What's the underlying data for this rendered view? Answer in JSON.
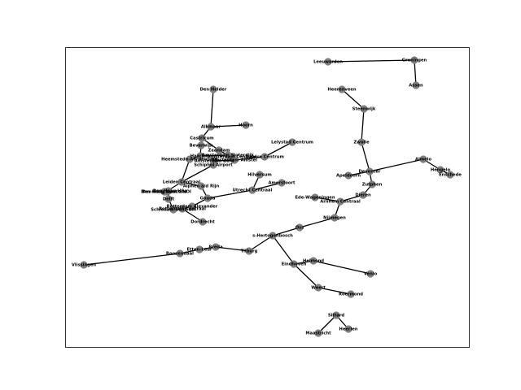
{
  "colors": {
    "node": "#808080",
    "edge": "#000000",
    "frame": "#000000",
    "background": "#ffffff"
  },
  "nodes": [
    {
      "id": "leeuwarden",
      "label": "Leeuwarden"
    },
    {
      "id": "groningen",
      "label": "Groningen"
    },
    {
      "id": "assen",
      "label": "Assen"
    },
    {
      "id": "heerenveen",
      "label": "Heerenveen"
    },
    {
      "id": "steenwijk",
      "label": "Steenwijk"
    },
    {
      "id": "zwolle",
      "label": "Zwolle"
    },
    {
      "id": "deventer",
      "label": "Deventer"
    },
    {
      "id": "almelo",
      "label": "Almelo"
    },
    {
      "id": "hengelo",
      "label": "Hengelo"
    },
    {
      "id": "enschede",
      "label": "Enschede"
    },
    {
      "id": "apeldoorn",
      "label": "Apeldoorn"
    },
    {
      "id": "zutphen",
      "label": "Zutphen"
    },
    {
      "id": "dieren",
      "label": "Dieren"
    },
    {
      "id": "arnhem",
      "label": "Arnhem Centraal"
    },
    {
      "id": "ede",
      "label": "Ede-Wageningen"
    },
    {
      "id": "nijmegen",
      "label": "Nijmegen"
    },
    {
      "id": "oss",
      "label": "Oss"
    },
    {
      "id": "denbosch",
      "label": "s-Hertogenbosch"
    },
    {
      "id": "tilburg",
      "label": "Tilburg"
    },
    {
      "id": "breda",
      "label": "Breda"
    },
    {
      "id": "ettenleur",
      "label": "Etten-Leur"
    },
    {
      "id": "roosendaal",
      "label": "Roosendaal"
    },
    {
      "id": "vlissingen",
      "label": "Vlissingen"
    },
    {
      "id": "eindhoven",
      "label": "Eindhoven"
    },
    {
      "id": "helmond",
      "label": "Helmond"
    },
    {
      "id": "venlo",
      "label": "Venlo"
    },
    {
      "id": "weert",
      "label": "Weert"
    },
    {
      "id": "roermond",
      "label": "Roermond"
    },
    {
      "id": "sittard",
      "label": "Sittard"
    },
    {
      "id": "heerlen",
      "label": "Heerlen"
    },
    {
      "id": "maastricht",
      "label": "Maastricht"
    },
    {
      "id": "denhelder",
      "label": "Den Helder"
    },
    {
      "id": "alkmaar",
      "label": "Alkmaar"
    },
    {
      "id": "hoorn",
      "label": "Hoorn"
    },
    {
      "id": "castricum",
      "label": "Castricum"
    },
    {
      "id": "beverwijk",
      "label": "Beverwijk"
    },
    {
      "id": "zaandam",
      "label": "Zaandam"
    },
    {
      "id": "haarlem",
      "label": "Haarlem"
    },
    {
      "id": "heemstede",
      "label": "Heemstede-Aerdenhout"
    },
    {
      "id": "amsterdamsloterdijk",
      "label": "Amsterdam Sloterdijk"
    },
    {
      "id": "amsterdamcentraal",
      "label": "Amsterdam Centraal"
    },
    {
      "id": "amsterdamzuid",
      "label": "Amsterdam Zuid"
    },
    {
      "id": "amsterdamamstel",
      "label": "Amsterdam Amstel"
    },
    {
      "id": "schiphol",
      "label": "Schiphol Airport"
    },
    {
      "id": "almerecentrum",
      "label": "Almere Centrum"
    },
    {
      "id": "lelystad",
      "label": "Lelystad Centrum"
    },
    {
      "id": "hilversum",
      "label": "Hilversum"
    },
    {
      "id": "amersfoort",
      "label": "Amersfoort"
    },
    {
      "id": "utrecht",
      "label": "Utrecht Centraal"
    },
    {
      "id": "leiden",
      "label": "Leiden Centraal"
    },
    {
      "id": "alphen",
      "label": "Alphen a/d Rijn"
    },
    {
      "id": "denhaaghs",
      "label": "Den Haag HS"
    },
    {
      "id": "denhaagcentraal",
      "label": "Den Haag Centraal"
    },
    {
      "id": "denhaaglaan",
      "label": "Den Haag Laan v NOI"
    },
    {
      "id": "delft",
      "label": "Delft"
    },
    {
      "id": "gouda",
      "label": "Gouda"
    },
    {
      "id": "schiedam",
      "label": "Schiedam Centrum"
    },
    {
      "id": "rotterdamcentraal",
      "label": "Rotterdam Centraal"
    },
    {
      "id": "rotterdamalexander",
      "label": "Rotterdam Alexander"
    },
    {
      "id": "dordrecht",
      "label": "Dordrecht"
    }
  ],
  "edges": [
    [
      "leeuwarden",
      "groningen"
    ],
    [
      "groningen",
      "assen"
    ],
    [
      "heerenveen",
      "steenwijk"
    ],
    [
      "steenwijk",
      "zwolle"
    ],
    [
      "zwolle",
      "deventer"
    ],
    [
      "deventer",
      "almelo"
    ],
    [
      "almelo",
      "hengelo"
    ],
    [
      "hengelo",
      "enschede"
    ],
    [
      "deventer",
      "apeldoorn"
    ],
    [
      "deventer",
      "zutphen"
    ],
    [
      "zutphen",
      "dieren"
    ],
    [
      "dieren",
      "arnhem"
    ],
    [
      "ede",
      "arnhem"
    ],
    [
      "arnhem",
      "nijmegen"
    ],
    [
      "nijmegen",
      "oss"
    ],
    [
      "oss",
      "denbosch"
    ],
    [
      "denbosch",
      "tilburg"
    ],
    [
      "denbosch",
      "eindhoven"
    ],
    [
      "tilburg",
      "breda"
    ],
    [
      "breda",
      "ettenleur"
    ],
    [
      "ettenleur",
      "roosendaal"
    ],
    [
      "roosendaal",
      "vlissingen"
    ],
    [
      "eindhoven",
      "helmond"
    ],
    [
      "helmond",
      "venlo"
    ],
    [
      "eindhoven",
      "weert"
    ],
    [
      "weert",
      "roermond"
    ],
    [
      "sittard",
      "heerlen"
    ],
    [
      "sittard",
      "maastricht"
    ],
    [
      "denhelder",
      "alkmaar"
    ],
    [
      "alkmaar",
      "hoorn"
    ],
    [
      "alkmaar",
      "castricum"
    ],
    [
      "castricum",
      "zaandam"
    ],
    [
      "beverwijk",
      "haarlem"
    ],
    [
      "zaandam",
      "amsterdamsloterdijk"
    ],
    [
      "haarlem",
      "amsterdamsloterdijk"
    ],
    [
      "amsterdamsloterdijk",
      "amsterdamcentraal"
    ],
    [
      "amsterdamcentraal",
      "amsterdamamstel"
    ],
    [
      "amsterdamzuid",
      "amsterdamamstel"
    ],
    [
      "amsterdamzuid",
      "schiphol"
    ],
    [
      "amsterdamamstel",
      "almerecentrum"
    ],
    [
      "almerecentrum",
      "lelystad"
    ],
    [
      "haarlem",
      "heemstede"
    ],
    [
      "heemstede",
      "leiden"
    ],
    [
      "schiphol",
      "leiden"
    ],
    [
      "leiden",
      "denhaaglaan"
    ],
    [
      "leiden",
      "alphen"
    ],
    [
      "alphen",
      "gouda"
    ],
    [
      "denhaaglaan",
      "denhaagcentraal"
    ],
    [
      "denhaaglaan",
      "denhaaghs"
    ],
    [
      "denhaaghs",
      "delft"
    ],
    [
      "delft",
      "schiedam"
    ],
    [
      "schiedam",
      "rotterdamcentraal"
    ],
    [
      "rotterdamcentraal",
      "rotterdamalexander"
    ],
    [
      "rotterdamalexander",
      "gouda"
    ],
    [
      "rotterdamcentraal",
      "dordrecht"
    ],
    [
      "gouda",
      "utrecht"
    ],
    [
      "hilversum",
      "utrecht"
    ],
    [
      "utrecht",
      "amersfoort"
    ]
  ]
}
